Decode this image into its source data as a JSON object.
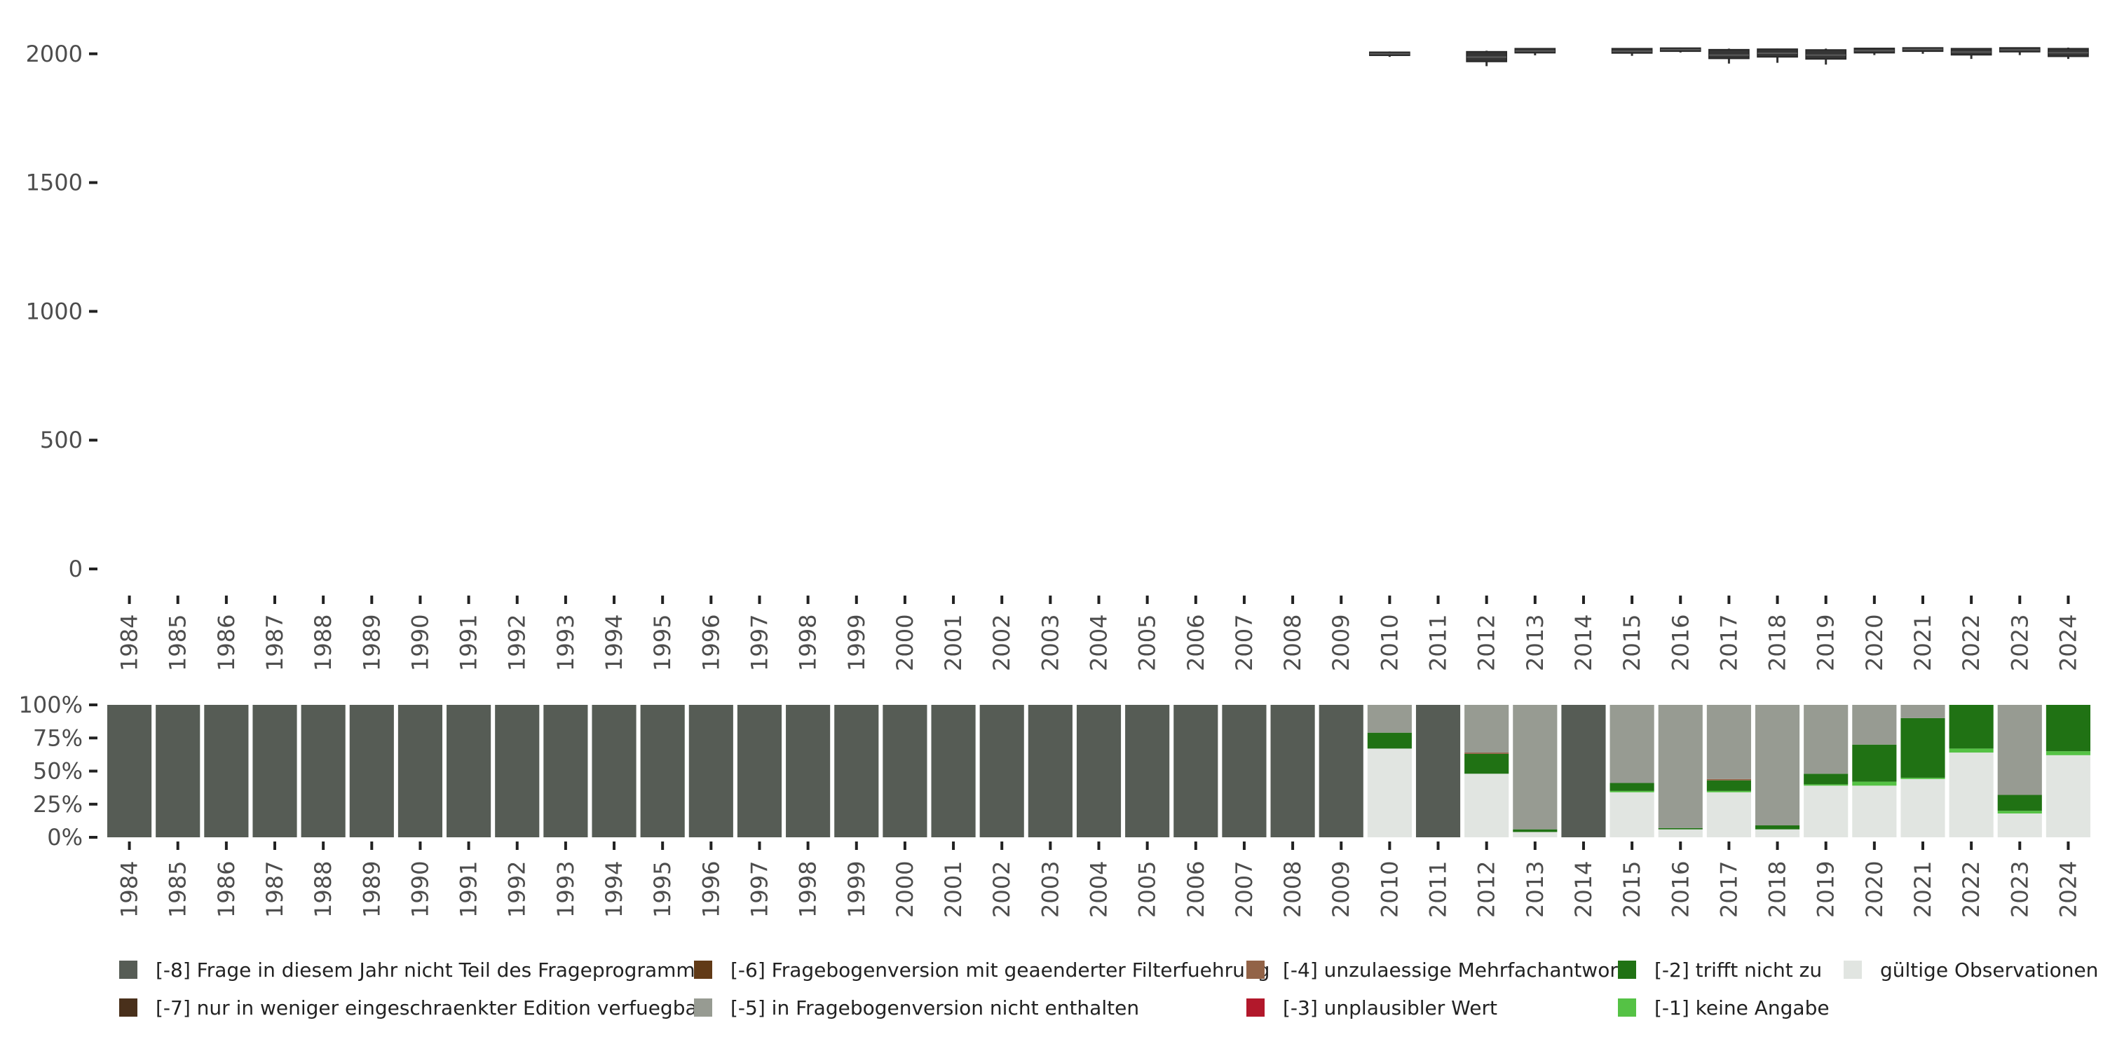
{
  "chart_data": [
    {
      "type": "boxplot",
      "title": "",
      "xlabel": "",
      "ylabel": "",
      "ylim": [
        0,
        2100
      ],
      "yticks": [
        0,
        500,
        1000,
        1500,
        2000
      ],
      "ytick_labels": [
        "0",
        "500",
        "1000",
        "1500",
        "2000"
      ],
      "categories": [
        "1984",
        "1985",
        "1986",
        "1987",
        "1988",
        "1989",
        "1990",
        "1991",
        "1992",
        "1993",
        "1994",
        "1995",
        "1996",
        "1997",
        "1998",
        "1999",
        "2000",
        "2001",
        "2002",
        "2003",
        "2004",
        "2005",
        "2006",
        "2007",
        "2008",
        "2009",
        "2010",
        "2011",
        "2012",
        "2013",
        "2014",
        "2015",
        "2016",
        "2017",
        "2018",
        "2019",
        "2020",
        "2021",
        "2022",
        "2023",
        "2024"
      ],
      "boxes": [
        {
          "year": "2010",
          "whisker_low": 1988,
          "q1": 1994,
          "median": 2000,
          "q3": 2006,
          "whisker_high": 2009
        },
        {
          "year": "2012",
          "whisker_low": 1952,
          "q1": 1970,
          "median": 1987,
          "q3": 2008,
          "whisker_high": 2012
        },
        {
          "year": "2013",
          "whisker_low": 1994,
          "q1": 2004,
          "median": 2011,
          "q3": 2020,
          "whisker_high": 2022
        },
        {
          "year": "2015",
          "whisker_low": 1992,
          "q1": 2003,
          "median": 2010,
          "q3": 2020,
          "whisker_high": 2022
        },
        {
          "year": "2016",
          "whisker_low": 2005,
          "q1": 2010,
          "median": 2016,
          "q3": 2022,
          "whisker_high": 2024
        },
        {
          "year": "2017",
          "whisker_low": 1962,
          "q1": 1982,
          "median": 1995,
          "q3": 2016,
          "whisker_high": 2020
        },
        {
          "year": "2018",
          "whisker_low": 1965,
          "q1": 1988,
          "median": 2002,
          "q3": 2018,
          "whisker_high": 2020
        },
        {
          "year": "2019",
          "whisker_low": 1958,
          "q1": 1980,
          "median": 1995,
          "q3": 2015,
          "whisker_high": 2020
        },
        {
          "year": "2020",
          "whisker_low": 1995,
          "q1": 2004,
          "median": 2012,
          "q3": 2021,
          "whisker_high": 2023
        },
        {
          "year": "2021",
          "whisker_low": 2000,
          "q1": 2010,
          "median": 2017,
          "q3": 2023,
          "whisker_high": 2024
        },
        {
          "year": "2022",
          "whisker_low": 1980,
          "q1": 1996,
          "median": 2007,
          "q3": 2020,
          "whisker_high": 2022
        },
        {
          "year": "2023",
          "whisker_low": 1995,
          "q1": 2008,
          "median": 2015,
          "q3": 2023,
          "whisker_high": 2024
        },
        {
          "year": "2024",
          "whisker_low": 1980,
          "q1": 1990,
          "median": 2004,
          "q3": 2020,
          "whisker_high": 2024
        }
      ],
      "grid": false
    },
    {
      "type": "stacked_bar",
      "title": "",
      "xlabel": "",
      "ylabel": "",
      "ylim": [
        0,
        1
      ],
      "yticks": [
        0,
        0.25,
        0.5,
        0.75,
        1
      ],
      "ytick_labels": [
        "0%",
        "25%",
        "50%",
        "75%",
        "100%"
      ],
      "categories": [
        "1984",
        "1985",
        "1986",
        "1987",
        "1988",
        "1989",
        "1990",
        "1991",
        "1992",
        "1993",
        "1994",
        "1995",
        "1996",
        "1997",
        "1998",
        "1999",
        "2000",
        "2001",
        "2002",
        "2003",
        "2004",
        "2005",
        "2006",
        "2007",
        "2008",
        "2009",
        "2010",
        "2011",
        "2012",
        "2013",
        "2014",
        "2015",
        "2016",
        "2017",
        "2018",
        "2019",
        "2020",
        "2021",
        "2022",
        "2023",
        "2024"
      ],
      "series": [
        {
          "name": "gültige Observationen",
          "color": "#e1e5e1",
          "values": [
            0,
            0,
            0,
            0,
            0,
            0,
            0,
            0,
            0,
            0,
            0,
            0,
            0,
            0,
            0,
            0,
            0,
            0,
            0,
            0,
            0,
            0,
            0,
            0,
            0,
            0,
            0.67,
            0,
            0.48,
            0.04,
            0,
            0.34,
            0.06,
            0.34,
            0.06,
            0.39,
            0.39,
            0.44,
            0.64,
            0.18,
            0.62
          ]
        },
        {
          "name": "[-1] keine Angabe",
          "color": "#55c245",
          "values": [
            0,
            0,
            0,
            0,
            0,
            0,
            0,
            0,
            0,
            0,
            0,
            0,
            0,
            0,
            0,
            0,
            0,
            0,
            0,
            0,
            0,
            0,
            0,
            0,
            0,
            0,
            0,
            0,
            0,
            0,
            0,
            0.01,
            0,
            0.01,
            0,
            0.01,
            0.03,
            0.01,
            0.03,
            0.02,
            0.03
          ]
        },
        {
          "name": "[-2] trifft nicht zu",
          "color": "#207214",
          "values": [
            0,
            0,
            0,
            0,
            0,
            0,
            0,
            0,
            0,
            0,
            0,
            0,
            0,
            0,
            0,
            0,
            0,
            0,
            0,
            0,
            0,
            0,
            0,
            0,
            0,
            0,
            0.12,
            0,
            0.15,
            0.02,
            0,
            0.06,
            0.01,
            0.08,
            0.03,
            0.08,
            0.28,
            0.45,
            0.33,
            0.12,
            0.35
          ]
        },
        {
          "name": "[-3] unplausibler Wert",
          "color": "#b2182b",
          "values": [
            0,
            0,
            0,
            0,
            0,
            0,
            0,
            0,
            0,
            0,
            0,
            0,
            0,
            0,
            0,
            0,
            0,
            0,
            0,
            0,
            0,
            0,
            0,
            0,
            0,
            0,
            0,
            0,
            0,
            0,
            0,
            0,
            0,
            0,
            0,
            0,
            0,
            0,
            0,
            0,
            0
          ]
        },
        {
          "name": "[-4] unzulaessige Mehrfachantwort",
          "color": "#926347",
          "values": [
            0,
            0,
            0,
            0,
            0,
            0,
            0,
            0,
            0,
            0,
            0,
            0,
            0,
            0,
            0,
            0,
            0,
            0,
            0,
            0,
            0,
            0,
            0,
            0,
            0,
            0,
            0,
            0,
            0.01,
            0,
            0,
            0,
            0,
            0.01,
            0,
            0,
            0,
            0,
            0,
            0,
            0
          ]
        },
        {
          "name": "[-5] in Fragebogenversion nicht enthalten",
          "color": "#979b92",
          "values": [
            0,
            0,
            0,
            0,
            0,
            0,
            0,
            0,
            0,
            0,
            0,
            0,
            0,
            0,
            0,
            0,
            0,
            0,
            0,
            0,
            0,
            0,
            0,
            0,
            0,
            0,
            0.21,
            0,
            0.36,
            0.94,
            0,
            0.59,
            0.93,
            0.56,
            0.91,
            0.52,
            0.3,
            0.1,
            0,
            0.68,
            0
          ]
        },
        {
          "name": "[-6] Fragebogenversion mit geaenderter Filterfuehrung",
          "color": "#613a17",
          "values": [
            0,
            0,
            0,
            0,
            0,
            0,
            0,
            0,
            0,
            0,
            0,
            0,
            0,
            0,
            0,
            0,
            0,
            0,
            0,
            0,
            0,
            0,
            0,
            0,
            0,
            0,
            0,
            0,
            0,
            0,
            0,
            0,
            0,
            0,
            0,
            0,
            0,
            0,
            0,
            0,
            0
          ]
        },
        {
          "name": "[-7] nur in weniger eingeschraenkter Edition verfuegbar",
          "color": "#49301b",
          "values": [
            0,
            0,
            0,
            0,
            0,
            0,
            0,
            0,
            0,
            0,
            0,
            0,
            0,
            0,
            0,
            0,
            0,
            0,
            0,
            0,
            0,
            0,
            0,
            0,
            0,
            0,
            0,
            0,
            0,
            0,
            0,
            0,
            0,
            0,
            0,
            0,
            0,
            0,
            0,
            0,
            0
          ]
        },
        {
          "name": "[-8] Frage in diesem Jahr nicht Teil des Frageprogramms",
          "color": "#565c55",
          "values": [
            1,
            1,
            1,
            1,
            1,
            1,
            1,
            1,
            1,
            1,
            1,
            1,
            1,
            1,
            1,
            1,
            1,
            1,
            1,
            1,
            1,
            1,
            1,
            1,
            1,
            1,
            0,
            1,
            0,
            0,
            1,
            0,
            0,
            0,
            0,
            0,
            0,
            0,
            0,
            0,
            0
          ]
        }
      ],
      "grid": false,
      "legend_position": "bottom"
    }
  ],
  "legend": {
    "items": [
      {
        "label": "[-8] Frage in diesem Jahr nicht Teil des Frageprogramms",
        "color": "#565c55"
      },
      {
        "label": "[-7] nur in weniger eingeschraenkter Edition verfuegbar",
        "color": "#49301b"
      },
      {
        "label": "[-6] Fragebogenversion mit geaenderter Filterfuehrung",
        "color": "#613a17"
      },
      {
        "label": "[-5] in Fragebogenversion nicht enthalten",
        "color": "#979b92"
      },
      {
        "label": "[-4] unzulaessige Mehrfachantwort",
        "color": "#926347"
      },
      {
        "label": "[-3] unplausibler Wert",
        "color": "#b2182b"
      },
      {
        "label": "[-2] trifft nicht zu",
        "color": "#207214"
      },
      {
        "label": "[-1] keine Angabe",
        "color": "#55c245"
      },
      {
        "label": "gültige Observationen",
        "color": "#e1e5e1"
      }
    ]
  }
}
